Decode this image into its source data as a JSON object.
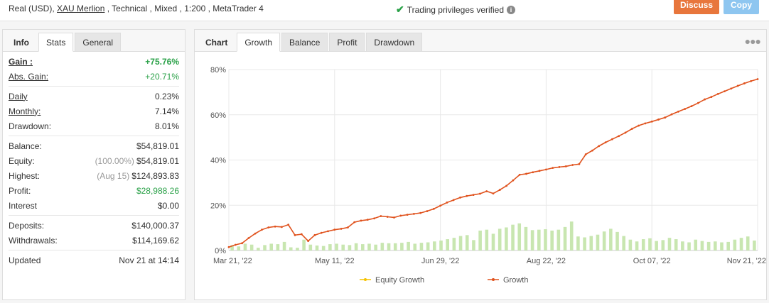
{
  "header": {
    "acct_pre": "Real (USD),",
    "acct_link": "XAU Merlion",
    "acct_post": ", Technical , Mixed , 1:200 , MetaTrader 4",
    "verified": "Trading privileges verified",
    "discuss": "Discuss",
    "copy": "Copy"
  },
  "left_tabs": [
    {
      "label": "Info"
    },
    {
      "label": "Stats"
    },
    {
      "label": "General"
    }
  ],
  "stats": {
    "gain_label": "Gain :",
    "gain_value": "+75.76%",
    "abs_label": "Abs. Gain:",
    "abs_value": "+20.71%",
    "daily_label": "Daily",
    "daily_value": "0.23%",
    "monthly_label": "Monthly:",
    "monthly_value": "7.14%",
    "dd_label": "Drawdown:",
    "dd_value": "8.01%",
    "balance_label": "Balance:",
    "balance_value": "$54,819.01",
    "equity_label": "Equity:",
    "equity_note": "(100.00%)",
    "equity_value": "$54,819.01",
    "highest_label": "Highest:",
    "highest_note": "(Aug 15)",
    "highest_value": "$124,893.83",
    "profit_label": "Profit:",
    "profit_value": "$28,988.26",
    "interest_label": "Interest",
    "interest_value": "$0.00",
    "deposits_label": "Deposits:",
    "deposits_value": "$140,000.37",
    "withdrawals_label": "Withdrawals:",
    "withdrawals_value": "$114,169.62",
    "updated_label": "Updated",
    "updated_value": "Nov 21 at 14:14"
  },
  "right_tabs": [
    {
      "label": "Chart"
    },
    {
      "label": "Growth"
    },
    {
      "label": "Balance"
    },
    {
      "label": "Profit"
    },
    {
      "label": "Drawdown"
    }
  ],
  "chart_data": {
    "type": "line",
    "y_ticks": [
      "0%",
      "20%",
      "40%",
      "60%",
      "80%"
    ],
    "x_ticks": [
      "Mar 21, '22",
      "May 11, '22",
      "Jun 29, '22",
      "Aug 22, '22",
      "Oct 07, '22",
      "Nov 21, '22"
    ],
    "ylim": [
      0,
      80
    ],
    "legend_position": "bottom-center",
    "series": [
      {
        "name": "Equity Growth",
        "color": "#f5c200",
        "values": []
      },
      {
        "name": "Growth",
        "color": "#e0521d",
        "values": [
          1.5,
          2.5,
          3.2,
          5.5,
          7.5,
          9.2,
          10.2,
          10.6,
          10.4,
          11.4,
          6.8,
          7.2,
          4.2,
          6.8,
          7.8,
          8.5,
          9.2,
          9.6,
          10.2,
          12.5,
          13.2,
          13.6,
          14.2,
          15.2,
          14.9,
          14.6,
          15.4,
          15.8,
          16.2,
          16.6,
          17.4,
          18.4,
          19.8,
          21.2,
          22.3,
          23.4,
          24.1,
          24.6,
          25.1,
          26.2,
          25.2,
          26.8,
          28.6,
          31.0,
          33.5,
          33.9,
          34.6,
          35.2,
          35.8,
          36.5,
          36.9,
          37.2,
          37.8,
          38.2,
          42.5,
          44.2,
          46.2,
          47.8,
          49.2,
          50.6,
          52.1,
          53.8,
          55.2,
          56.2,
          57.0,
          57.9,
          58.8,
          60.2,
          61.4,
          62.6,
          63.8,
          65.2,
          66.8,
          67.9,
          69.2,
          70.4,
          71.6,
          72.8,
          73.9,
          74.9,
          75.76
        ]
      },
      {
        "name": "Daily bars",
        "color": "#c8e6b0",
        "values": [
          2.4,
          1.8,
          3.0,
          2.6,
          1.2,
          2.4,
          3.0,
          2.8,
          3.8,
          1.4,
          1.2,
          4.8,
          2.6,
          2.2,
          2.0,
          2.8,
          3.0,
          2.6,
          2.4,
          3.2,
          2.8,
          3.0,
          2.6,
          3.4,
          3.2,
          3.2,
          3.4,
          3.8,
          3.0,
          3.4,
          3.6,
          4.0,
          4.4,
          5.0,
          5.6,
          6.4,
          6.8,
          4.6,
          8.8,
          9.2,
          7.4,
          9.6,
          10.2,
          11.4,
          12.0,
          10.4,
          9.0,
          9.2,
          9.4,
          8.8,
          9.2,
          10.4,
          12.8,
          6.2,
          5.8,
          6.4,
          7.0,
          8.4,
          9.6,
          8.2,
          6.4,
          4.8,
          4.0,
          5.0,
          5.4,
          4.2,
          4.6,
          5.6,
          5.0,
          4.0,
          3.6,
          4.8,
          4.2,
          3.8,
          4.0,
          3.6,
          3.8,
          4.8,
          5.6,
          6.2,
          4.4
        ]
      }
    ]
  }
}
